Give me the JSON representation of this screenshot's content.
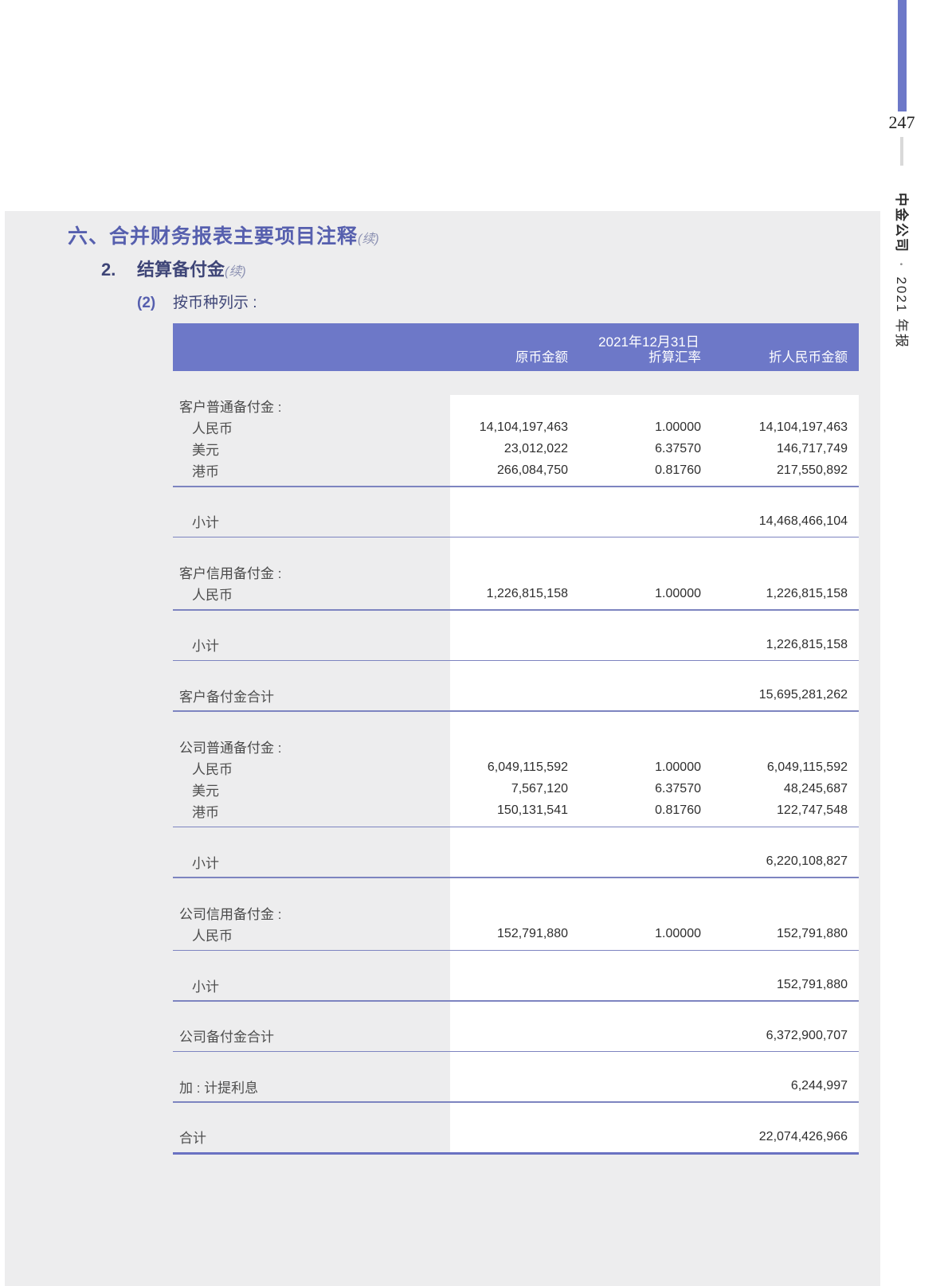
{
  "colors": {
    "accent_purple": "#6d78c8",
    "heading_purple": "#565fae",
    "heading_navy": "#3e4577",
    "rule_line": "#7d84c0",
    "panel_gray": "#ededee",
    "data_area_white": "#ffffff"
  },
  "page": {
    "number": "247",
    "spine_company": "中金公司",
    "spine_bullet": "•",
    "spine_edition": "2021 年报"
  },
  "headings": {
    "h1_text": "六、合并财务报表主要项目注释",
    "h1_suffix": "(续)",
    "h2_num": "2.",
    "h2_text": "结算备付金",
    "h2_suffix": "(续)",
    "h3_num": "(2)",
    "h3_text": "按币种列示 :"
  },
  "table": {
    "date_header": "2021年12月31日",
    "col_orig": "原币金额",
    "col_rate": "折算汇率",
    "col_cny": "折人民币金额",
    "rows": [
      {
        "type": "group",
        "label": "客户普通备付金 :"
      },
      {
        "type": "currency",
        "label": "人民币",
        "orig": "14,104,197,463",
        "rate": "1.00000",
        "cny": "14,104,197,463"
      },
      {
        "type": "currency",
        "label": "美元",
        "orig": "23,012,022",
        "rate": "6.37570",
        "cny": "146,717,749"
      },
      {
        "type": "currency",
        "label": "港币",
        "orig": "266,084,750",
        "rate": "0.81760",
        "cny": "217,550,892",
        "line_below": true
      },
      {
        "type": "subtotal",
        "label": "小计",
        "cny": "14,468,466,104",
        "line_below": true
      },
      {
        "type": "group",
        "label": "客户信用备付金 :"
      },
      {
        "type": "currency",
        "label": "人民币",
        "orig": "1,226,815,158",
        "rate": "1.00000",
        "cny": "1,226,815,158",
        "line_below": true
      },
      {
        "type": "subtotal",
        "label": "小计",
        "cny": "1,226,815,158",
        "line_below": true
      },
      {
        "type": "total",
        "label": "客户备付金合计",
        "cny": "15,695,281,262",
        "line_below": true
      },
      {
        "type": "group",
        "label": "公司普通备付金 :"
      },
      {
        "type": "currency",
        "label": "人民币",
        "orig": "6,049,115,592",
        "rate": "1.00000",
        "cny": "6,049,115,592"
      },
      {
        "type": "currency",
        "label": "美元",
        "orig": "7,567,120",
        "rate": "6.37570",
        "cny": "48,245,687"
      },
      {
        "type": "currency",
        "label": "港币",
        "orig": "150,131,541",
        "rate": "0.81760",
        "cny": "122,747,548",
        "line_below": true
      },
      {
        "type": "subtotal",
        "label": "小计",
        "cny": "6,220,108,827",
        "line_below": true
      },
      {
        "type": "group",
        "label": "公司信用备付金 :"
      },
      {
        "type": "currency",
        "label": "人民币",
        "orig": "152,791,880",
        "rate": "1.00000",
        "cny": "152,791,880",
        "line_below": true
      },
      {
        "type": "subtotal",
        "label": "小计",
        "cny": "152,791,880",
        "line_below": true
      },
      {
        "type": "total",
        "label": "公司备付金合计",
        "cny": "6,372,900,707",
        "line_below": true
      },
      {
        "type": "total",
        "label": "加 : 计提利息",
        "cny": "6,244,997",
        "line_below": true
      },
      {
        "type": "total",
        "label": "合计",
        "cny": "22,074,426,966",
        "thick_line_below": true
      }
    ]
  }
}
